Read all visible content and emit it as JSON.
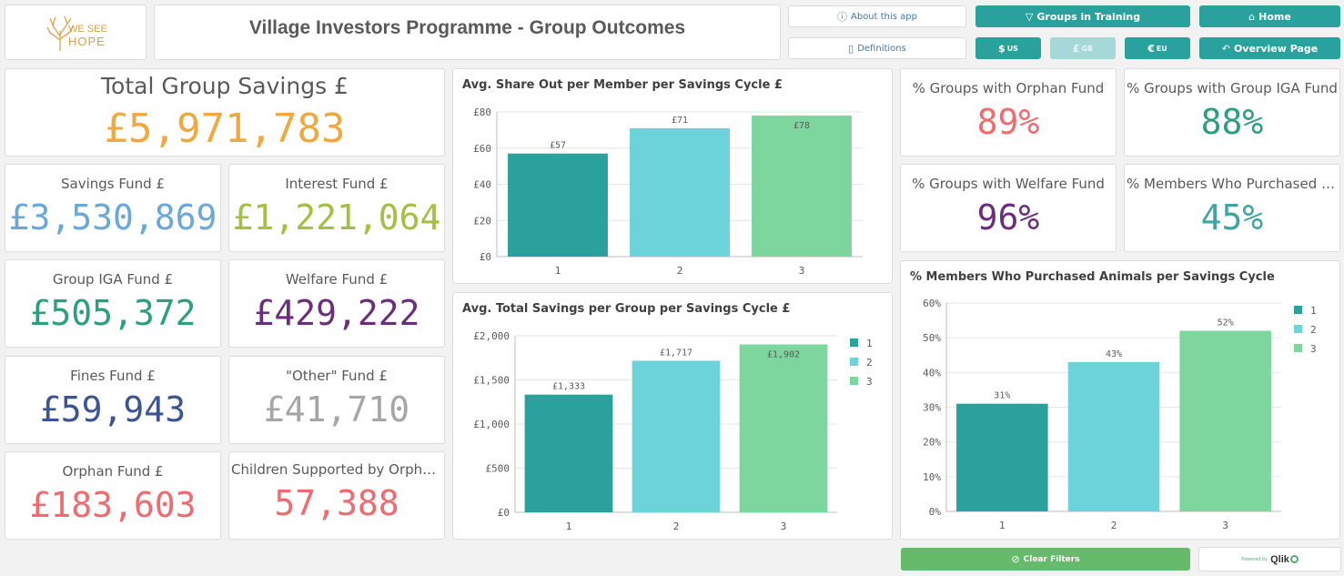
{
  "header": {
    "logo_text_line1": "WE SEE",
    "logo_text_line2": "HOPE",
    "title": "Village Investors Programme - Group Outcomes"
  },
  "buttons": {
    "about": "About this app",
    "definitions": "Definitions",
    "groups_in_training": "Groups in Training",
    "home": "Home",
    "usd": "$",
    "usd_sub": "US",
    "gbp": "£",
    "gbp_sub": "GB",
    "eur": "€",
    "eur_sub": "EU",
    "overview": "Overview Page",
    "clear_filters": "Clear Filters",
    "qlik_small": "Powered by",
    "qlik": "Qlik"
  },
  "kpis": {
    "total_savings": {
      "label": "Total Group Savings £",
      "value": "£5,971,783",
      "color": "#f0a840"
    },
    "savings_fund": {
      "label": "Savings Fund £",
      "value": "£3,530,869",
      "color": "#6aa8d8"
    },
    "interest_fund": {
      "label": "Interest Fund £",
      "value": "£1,221,064",
      "color": "#a3c043"
    },
    "iga_fund": {
      "label": "Group IGA Fund £",
      "value": "£505,372",
      "color": "#2d9f7f"
    },
    "welfare_fund": {
      "label": "Welfare Fund £",
      "value": "£429,222",
      "color": "#6b2e7a"
    },
    "fines_fund": {
      "label": "Fines Fund £",
      "value": "£59,943",
      "color": "#3d5494"
    },
    "other_fund": {
      "label": "\"Other\" Fund £",
      "value": "£41,710",
      "color": "#a6a6a6"
    },
    "orphan_fund": {
      "label": "Orphan Fund £",
      "value": "£183,603",
      "color": "#f06b6f"
    },
    "children_supported": {
      "label": "Children Supported by Orpha...",
      "value": "57,388",
      "color": "#f06b6f"
    },
    "pct_orphan": {
      "label": "% Groups with Orphan Fund",
      "value": "89%",
      "color": "#f06b6f"
    },
    "pct_iga": {
      "label": "% Groups with Group IGA Fund",
      "value": "88%",
      "color": "#2d9f7f"
    },
    "pct_welfare": {
      "label": "% Groups with Welfare Fund",
      "value": "96%",
      "color": "#6b2e7a"
    },
    "pct_animals": {
      "label": "% Members Who Purchased A...",
      "value": "45%",
      "color": "#3fa5a2"
    }
  },
  "chart_data": [
    {
      "id": "share_out",
      "type": "bar",
      "title": "Avg. Share Out per Member per Savings Cycle £",
      "categories": [
        "1",
        "2",
        "3"
      ],
      "values": [
        57,
        71,
        78
      ],
      "data_labels": [
        "£57",
        "£71",
        "£78"
      ],
      "colors": [
        "#2aa19d",
        "#6bd3d9",
        "#7dd69d"
      ],
      "ylim": [
        0,
        80
      ],
      "yticks": [
        0,
        20,
        40,
        60,
        80
      ],
      "ytick_labels": [
        "£0",
        "£20",
        "£40",
        "£60",
        "£80"
      ],
      "grid": true,
      "legend": false
    },
    {
      "id": "total_savings",
      "type": "bar",
      "title": "Avg. Total Savings per Group per Savings Cycle £",
      "categories": [
        "1",
        "2",
        "3"
      ],
      "values": [
        1333,
        1717,
        1902
      ],
      "data_labels": [
        "£1,333",
        "£1,717",
        "£1,902"
      ],
      "colors": [
        "#2aa19d",
        "#6bd3d9",
        "#7dd69d"
      ],
      "ylim": [
        0,
        2000
      ],
      "yticks": [
        0,
        500,
        1000,
        1500,
        2000
      ],
      "ytick_labels": [
        "£0",
        "£500",
        "£1,000",
        "£1,500",
        "£2,000"
      ],
      "grid": true,
      "legend": true,
      "legend_position": "right",
      "legend_entries": [
        "1",
        "2",
        "3"
      ]
    },
    {
      "id": "animals",
      "type": "bar",
      "title": "% Members Who Purchased Animals per Savings Cycle",
      "categories": [
        "1",
        "2",
        "3"
      ],
      "values": [
        31,
        43,
        52
      ],
      "data_labels": [
        "31%",
        "43%",
        "52%"
      ],
      "colors": [
        "#2aa19d",
        "#6bd3d9",
        "#7dd69d"
      ],
      "ylim": [
        0,
        60
      ],
      "yticks": [
        0,
        10,
        20,
        30,
        40,
        50,
        60
      ],
      "ytick_labels": [
        "0%",
        "10%",
        "20%",
        "30%",
        "40%",
        "50%",
        "60%"
      ],
      "grid": true,
      "legend": true,
      "legend_position": "right",
      "legend_entries": [
        "1",
        "2",
        "3"
      ]
    }
  ]
}
